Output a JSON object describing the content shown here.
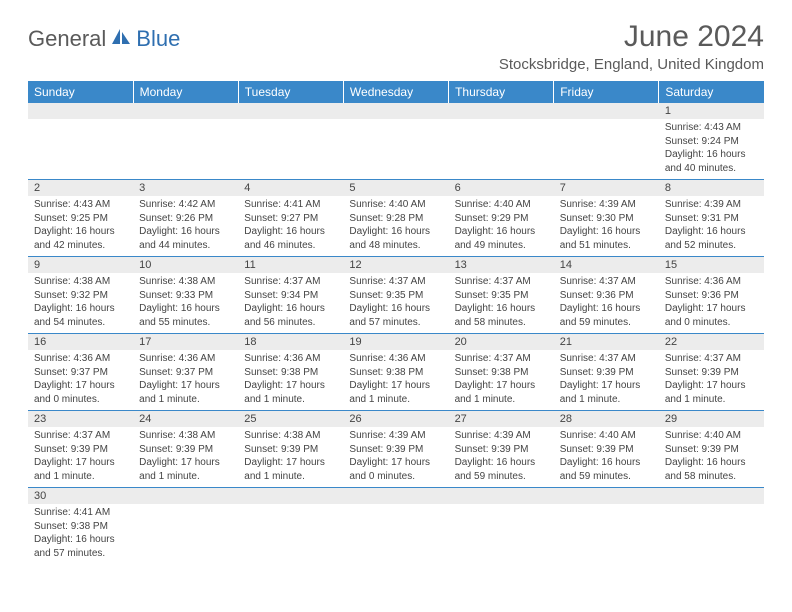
{
  "logo": {
    "part1": "General",
    "part2": "Blue"
  },
  "title": "June 2024",
  "location": "Stocksbridge, England, United Kingdom",
  "colors": {
    "header_bg": "#3a88c9",
    "header_text": "#ffffff",
    "daynum_bg": "#ececec",
    "border": "#3a88c9",
    "text": "#444444",
    "logo_gray": "#5a5a5a",
    "logo_blue": "#2f6fb0"
  },
  "day_headers": [
    "Sunday",
    "Monday",
    "Tuesday",
    "Wednesday",
    "Thursday",
    "Friday",
    "Saturday"
  ],
  "weeks": [
    [
      null,
      null,
      null,
      null,
      null,
      null,
      {
        "n": "1",
        "sr": "4:43 AM",
        "ss": "9:24 PM",
        "dl": "16 hours and 40 minutes."
      }
    ],
    [
      {
        "n": "2",
        "sr": "4:43 AM",
        "ss": "9:25 PM",
        "dl": "16 hours and 42 minutes."
      },
      {
        "n": "3",
        "sr": "4:42 AM",
        "ss": "9:26 PM",
        "dl": "16 hours and 44 minutes."
      },
      {
        "n": "4",
        "sr": "4:41 AM",
        "ss": "9:27 PM",
        "dl": "16 hours and 46 minutes."
      },
      {
        "n": "5",
        "sr": "4:40 AM",
        "ss": "9:28 PM",
        "dl": "16 hours and 48 minutes."
      },
      {
        "n": "6",
        "sr": "4:40 AM",
        "ss": "9:29 PM",
        "dl": "16 hours and 49 minutes."
      },
      {
        "n": "7",
        "sr": "4:39 AM",
        "ss": "9:30 PM",
        "dl": "16 hours and 51 minutes."
      },
      {
        "n": "8",
        "sr": "4:39 AM",
        "ss": "9:31 PM",
        "dl": "16 hours and 52 minutes."
      }
    ],
    [
      {
        "n": "9",
        "sr": "4:38 AM",
        "ss": "9:32 PM",
        "dl": "16 hours and 54 minutes."
      },
      {
        "n": "10",
        "sr": "4:38 AM",
        "ss": "9:33 PM",
        "dl": "16 hours and 55 minutes."
      },
      {
        "n": "11",
        "sr": "4:37 AM",
        "ss": "9:34 PM",
        "dl": "16 hours and 56 minutes."
      },
      {
        "n": "12",
        "sr": "4:37 AM",
        "ss": "9:35 PM",
        "dl": "16 hours and 57 minutes."
      },
      {
        "n": "13",
        "sr": "4:37 AM",
        "ss": "9:35 PM",
        "dl": "16 hours and 58 minutes."
      },
      {
        "n": "14",
        "sr": "4:37 AM",
        "ss": "9:36 PM",
        "dl": "16 hours and 59 minutes."
      },
      {
        "n": "15",
        "sr": "4:36 AM",
        "ss": "9:36 PM",
        "dl": "17 hours and 0 minutes."
      }
    ],
    [
      {
        "n": "16",
        "sr": "4:36 AM",
        "ss": "9:37 PM",
        "dl": "17 hours and 0 minutes."
      },
      {
        "n": "17",
        "sr": "4:36 AM",
        "ss": "9:37 PM",
        "dl": "17 hours and 1 minute."
      },
      {
        "n": "18",
        "sr": "4:36 AM",
        "ss": "9:38 PM",
        "dl": "17 hours and 1 minute."
      },
      {
        "n": "19",
        "sr": "4:36 AM",
        "ss": "9:38 PM",
        "dl": "17 hours and 1 minute."
      },
      {
        "n": "20",
        "sr": "4:37 AM",
        "ss": "9:38 PM",
        "dl": "17 hours and 1 minute."
      },
      {
        "n": "21",
        "sr": "4:37 AM",
        "ss": "9:39 PM",
        "dl": "17 hours and 1 minute."
      },
      {
        "n": "22",
        "sr": "4:37 AM",
        "ss": "9:39 PM",
        "dl": "17 hours and 1 minute."
      }
    ],
    [
      {
        "n": "23",
        "sr": "4:37 AM",
        "ss": "9:39 PM",
        "dl": "17 hours and 1 minute."
      },
      {
        "n": "24",
        "sr": "4:38 AM",
        "ss": "9:39 PM",
        "dl": "17 hours and 1 minute."
      },
      {
        "n": "25",
        "sr": "4:38 AM",
        "ss": "9:39 PM",
        "dl": "17 hours and 1 minute."
      },
      {
        "n": "26",
        "sr": "4:39 AM",
        "ss": "9:39 PM",
        "dl": "17 hours and 0 minutes."
      },
      {
        "n": "27",
        "sr": "4:39 AM",
        "ss": "9:39 PM",
        "dl": "16 hours and 59 minutes."
      },
      {
        "n": "28",
        "sr": "4:40 AM",
        "ss": "9:39 PM",
        "dl": "16 hours and 59 minutes."
      },
      {
        "n": "29",
        "sr": "4:40 AM",
        "ss": "9:39 PM",
        "dl": "16 hours and 58 minutes."
      }
    ],
    [
      {
        "n": "30",
        "sr": "4:41 AM",
        "ss": "9:38 PM",
        "dl": "16 hours and 57 minutes."
      },
      null,
      null,
      null,
      null,
      null,
      null
    ]
  ],
  "labels": {
    "sunrise": "Sunrise:",
    "sunset": "Sunset:",
    "daylight": "Daylight:"
  }
}
